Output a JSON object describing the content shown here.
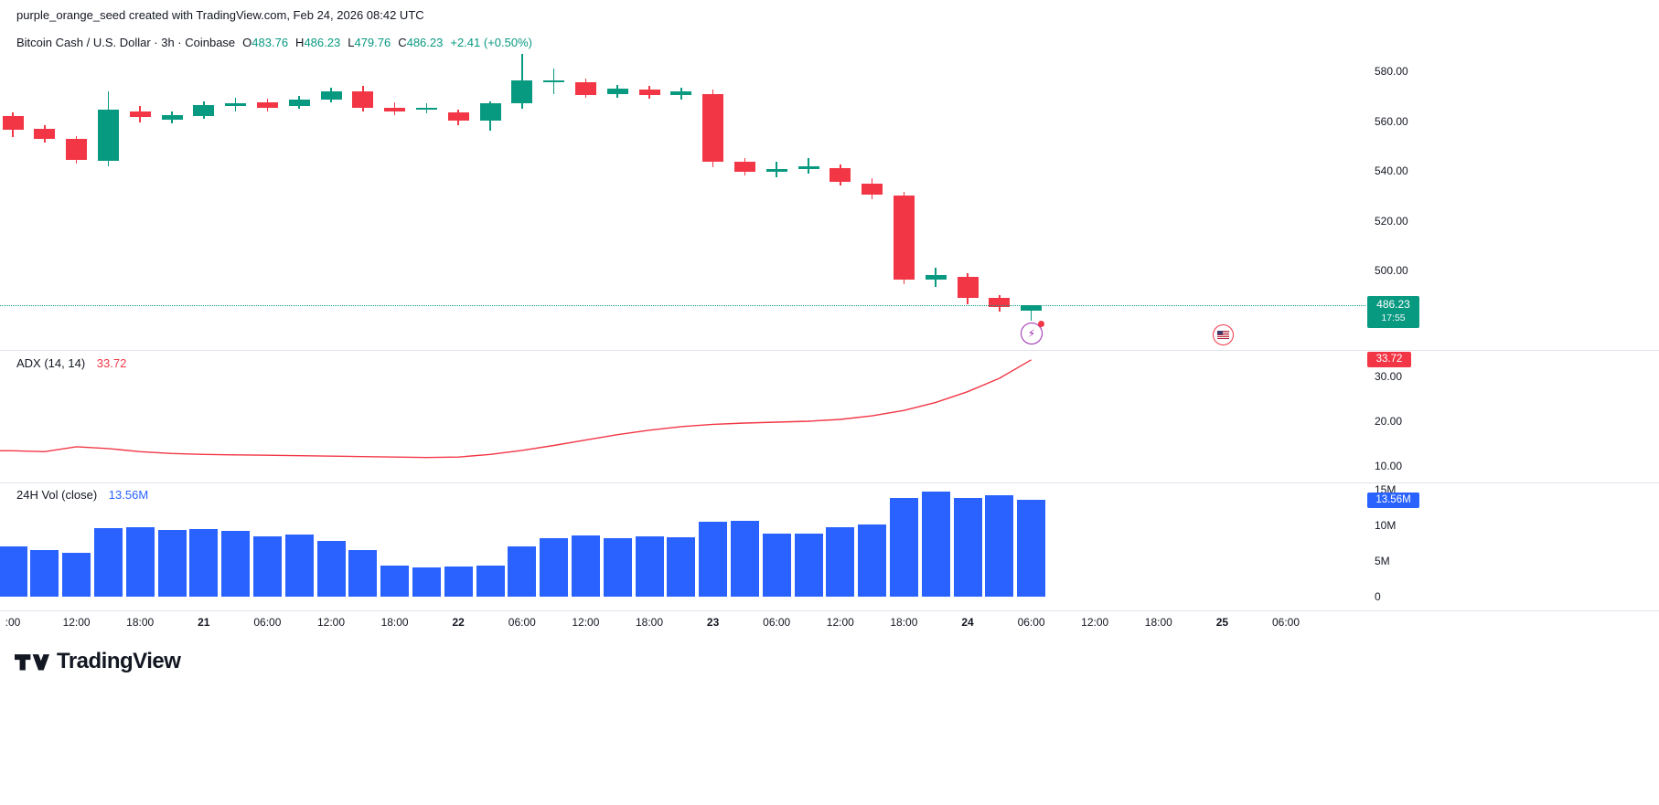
{
  "colors": {
    "up": "#089981",
    "down": "#F23645",
    "volume": "#2962FF",
    "adx_line": "#F23645",
    "text": "#131722",
    "separator": "#e0e3eb"
  },
  "header": {
    "watermark": "purple_orange_seed created with TradingView.com, Feb 24, 2026 08:42 UTC"
  },
  "legend": {
    "title": "Bitcoin Cash / U.S. Dollar · 3h · Coinbase",
    "open_label": "O",
    "open": "483.76",
    "high_label": "H",
    "high": "486.23",
    "low_label": "L",
    "low": "479.76",
    "close_label": "C",
    "close": "486.23",
    "change": "+2.41 (+0.50%)"
  },
  "price_axis": {
    "ticks": [
      580,
      560,
      540,
      520,
      500
    ],
    "last_price": "486.23",
    "countdown": "17:55"
  },
  "adx_panel": {
    "label": "ADX (14, 14)",
    "value": "33.72",
    "badge": "33.72",
    "ticks": [
      30,
      20,
      10
    ]
  },
  "volume_panel": {
    "label": "24H Vol (close)",
    "value": "13.56M",
    "badge": "13.56M",
    "ticks": [
      "15M",
      "10M",
      "5M",
      "0"
    ]
  },
  "time_axis": [
    {
      "label": ":00",
      "idx": 0,
      "bold": false
    },
    {
      "label": "12:00",
      "idx": 2,
      "bold": false
    },
    {
      "label": "18:00",
      "idx": 4,
      "bold": false
    },
    {
      "label": "21",
      "idx": 6,
      "bold": true
    },
    {
      "label": "06:00",
      "idx": 8,
      "bold": false
    },
    {
      "label": "12:00",
      "idx": 10,
      "bold": false
    },
    {
      "label": "18:00",
      "idx": 12,
      "bold": false
    },
    {
      "label": "22",
      "idx": 14,
      "bold": true
    },
    {
      "label": "06:00",
      "idx": 16,
      "bold": false
    },
    {
      "label": "12:00",
      "idx": 18,
      "bold": false
    },
    {
      "label": "18:00",
      "idx": 20,
      "bold": false
    },
    {
      "label": "23",
      "idx": 22,
      "bold": true
    },
    {
      "label": "06:00",
      "idx": 24,
      "bold": false
    },
    {
      "label": "12:00",
      "idx": 26,
      "bold": false
    },
    {
      "label": "18:00",
      "idx": 28,
      "bold": false
    },
    {
      "label": "24",
      "idx": 30,
      "bold": true
    },
    {
      "label": "06:00",
      "idx": 32,
      "bold": false
    },
    {
      "label": "12:00",
      "idx": 34,
      "bold": false
    },
    {
      "label": "18:00",
      "idx": 36,
      "bold": false
    },
    {
      "label": "25",
      "idx": 38,
      "bold": true
    },
    {
      "label": "06:00",
      "idx": 40,
      "bold": false
    }
  ],
  "markers": [
    {
      "name": "lightning-event",
      "idx": 32
    },
    {
      "name": "us-flag-event",
      "idx": 38
    }
  ],
  "footer": {
    "brand": "TradingView"
  },
  "chart_data": {
    "type": "candlestick",
    "title": "Bitcoin Cash / U.S. Dollar · 3h · Coinbase",
    "symbol": "Bitcoin Cash / U.S. Dollar",
    "interval": "3h",
    "exchange": "Coinbase",
    "price_ylim": [
      478,
      592
    ],
    "last": {
      "o": 483.76,
      "h": 486.23,
      "l": 479.76,
      "c": 486.23,
      "change": "+2.41 (+0.50%)"
    },
    "candles": [
      {
        "o": 562.0,
        "h": 563.5,
        "l": 553.5,
        "c": 556.5
      },
      {
        "o": 557.0,
        "h": 558.5,
        "l": 551.5,
        "c": 553.0
      },
      {
        "o": 553.0,
        "h": 554.0,
        "l": 543.0,
        "c": 544.5
      },
      {
        "o": 544.0,
        "h": 572.0,
        "l": 542.0,
        "c": 564.5
      },
      {
        "o": 564.0,
        "h": 566.0,
        "l": 559.5,
        "c": 561.5
      },
      {
        "o": 560.5,
        "h": 564.0,
        "l": 559.0,
        "c": 562.5
      },
      {
        "o": 562.0,
        "h": 568.0,
        "l": 561.0,
        "c": 566.5
      },
      {
        "o": 566.0,
        "h": 569.5,
        "l": 564.0,
        "c": 567.2
      },
      {
        "o": 567.5,
        "h": 569.0,
        "l": 564.0,
        "c": 565.5
      },
      {
        "o": 566.0,
        "h": 570.0,
        "l": 565.0,
        "c": 568.5
      },
      {
        "o": 568.5,
        "h": 573.5,
        "l": 567.5,
        "c": 572.0
      },
      {
        "o": 572.0,
        "h": 574.0,
        "l": 564.0,
        "c": 565.5
      },
      {
        "o": 565.5,
        "h": 567.5,
        "l": 562.5,
        "c": 564.0
      },
      {
        "o": 564.5,
        "h": 567.0,
        "l": 563.0,
        "c": 565.2
      },
      {
        "o": 563.5,
        "h": 564.5,
        "l": 558.5,
        "c": 560.0
      },
      {
        "o": 560.0,
        "h": 568.0,
        "l": 556.0,
        "c": 567.0
      },
      {
        "o": 567.0,
        "h": 587.0,
        "l": 565.0,
        "c": 576.5
      },
      {
        "o": 575.6,
        "h": 581.0,
        "l": 571.0,
        "c": 576.4
      },
      {
        "o": 575.5,
        "h": 577.0,
        "l": 569.5,
        "c": 570.5
      },
      {
        "o": 570.7,
        "h": 574.5,
        "l": 569.5,
        "c": 573.0
      },
      {
        "o": 572.5,
        "h": 574.0,
        "l": 569.0,
        "c": 570.3
      },
      {
        "o": 570.3,
        "h": 573.5,
        "l": 568.5,
        "c": 571.8
      },
      {
        "o": 571.0,
        "h": 572.5,
        "l": 541.5,
        "c": 543.5
      },
      {
        "o": 543.5,
        "h": 545.0,
        "l": 538.0,
        "c": 539.8
      },
      {
        "o": 539.8,
        "h": 543.5,
        "l": 537.5,
        "c": 540.8
      },
      {
        "o": 540.8,
        "h": 545.0,
        "l": 539.0,
        "c": 541.8
      },
      {
        "o": 541.0,
        "h": 542.5,
        "l": 534.0,
        "c": 535.5
      },
      {
        "o": 535.0,
        "h": 537.0,
        "l": 528.5,
        "c": 530.5
      },
      {
        "o": 530.0,
        "h": 531.5,
        "l": 494.5,
        "c": 496.5
      },
      {
        "o": 496.5,
        "h": 501.0,
        "l": 493.5,
        "c": 498.0
      },
      {
        "o": 497.5,
        "h": 499.0,
        "l": 486.5,
        "c": 489.0
      },
      {
        "o": 489.0,
        "h": 490.0,
        "l": 483.5,
        "c": 485.2
      },
      {
        "o": 483.76,
        "h": 486.23,
        "l": 479.76,
        "c": 486.23
      }
    ],
    "adx": {
      "type": "line",
      "name": "ADX (14, 14)",
      "ylim": [
        8,
        36
      ],
      "values": [
        13.4,
        13.2,
        14.3,
        13.9,
        13.2,
        12.8,
        12.6,
        12.5,
        12.4,
        12.3,
        12.2,
        12.1,
        12.0,
        11.9,
        12.0,
        12.6,
        13.5,
        14.6,
        15.8,
        17.0,
        18.0,
        18.8,
        19.3,
        19.6,
        19.8,
        20.0,
        20.4,
        21.2,
        22.4,
        24.2,
        26.6,
        29.6,
        33.72
      ]
    },
    "volume": {
      "type": "bar",
      "name": "24H Vol (close)",
      "unit": "M",
      "ylim": [
        0,
        15.5
      ],
      "values": [
        7.0,
        6.6,
        6.1,
        9.6,
        9.7,
        9.3,
        9.5,
        9.2,
        8.4,
        8.7,
        7.8,
        6.6,
        4.4,
        4.1,
        4.2,
        4.3,
        7.1,
        8.2,
        8.6,
        8.2,
        8.5,
        8.3,
        10.5,
        10.6,
        8.9,
        8.9,
        9.7,
        10.1,
        13.8,
        14.7,
        13.9,
        14.2,
        13.56
      ]
    }
  }
}
